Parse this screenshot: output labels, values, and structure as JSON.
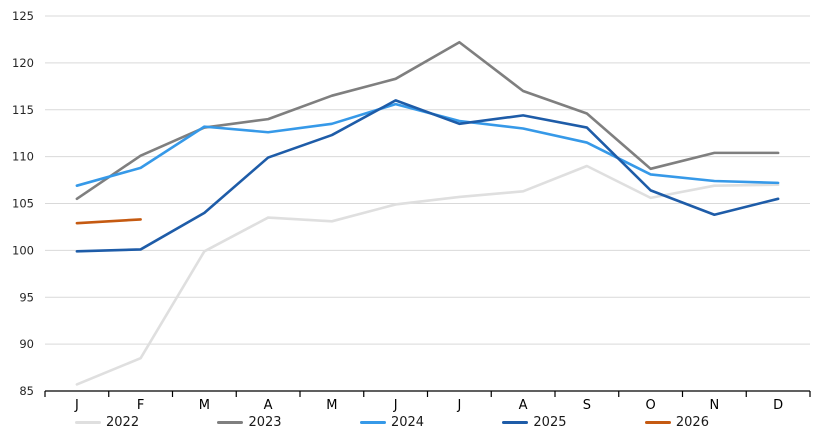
{
  "page": {
    "background": "#ffffff",
    "title": ""
  },
  "chart_data": {
    "type": "line",
    "title": "",
    "xlabel": "",
    "ylabel": "",
    "x_categories": [
      "J",
      "F",
      "M",
      "A",
      "M",
      "J",
      "J",
      "A",
      "S",
      "O",
      "N",
      "D"
    ],
    "y_axis": {
      "min": 85,
      "max": 125,
      "step": 5,
      "tick_labels": [
        "125",
        "120",
        "115",
        "110",
        "105",
        "100",
        "95",
        "90",
        "85"
      ]
    },
    "grid": true,
    "grid_color": "#D9D9D9",
    "axis_color": "#000000",
    "legend_position": "bottom",
    "series": [
      {
        "name": "2022",
        "color": "#DFDFDF",
        "values": [
          85.7,
          88.5,
          99.9,
          103.5,
          103.1,
          104.9,
          105.7,
          106.3,
          109.0,
          105.6,
          106.9,
          107.0
        ]
      },
      {
        "name": "2023",
        "color": "#7F7F7F",
        "values": [
          105.5,
          110.1,
          113.1,
          114.0,
          116.5,
          118.3,
          122.2,
          117.0,
          114.6,
          108.7,
          110.4,
          110.4
        ]
      },
      {
        "name": "2024",
        "color": "#3699E8",
        "values": [
          106.9,
          108.8,
          113.2,
          112.6,
          113.5,
          115.6,
          113.8,
          113.0,
          111.5,
          108.1,
          107.4,
          107.2
        ]
      },
      {
        "name": "2025",
        "color": "#1E5CA8",
        "values": [
          99.9,
          100.1,
          104.0,
          109.9,
          112.3,
          116.0,
          113.5,
          114.4,
          113.1,
          106.4,
          103.8,
          105.5
        ]
      },
      {
        "name": "2026",
        "color": "#C55A11",
        "values": [
          102.9,
          103.3,
          null,
          null,
          null,
          null,
          null,
          null,
          null,
          null,
          null,
          null
        ]
      }
    ]
  }
}
